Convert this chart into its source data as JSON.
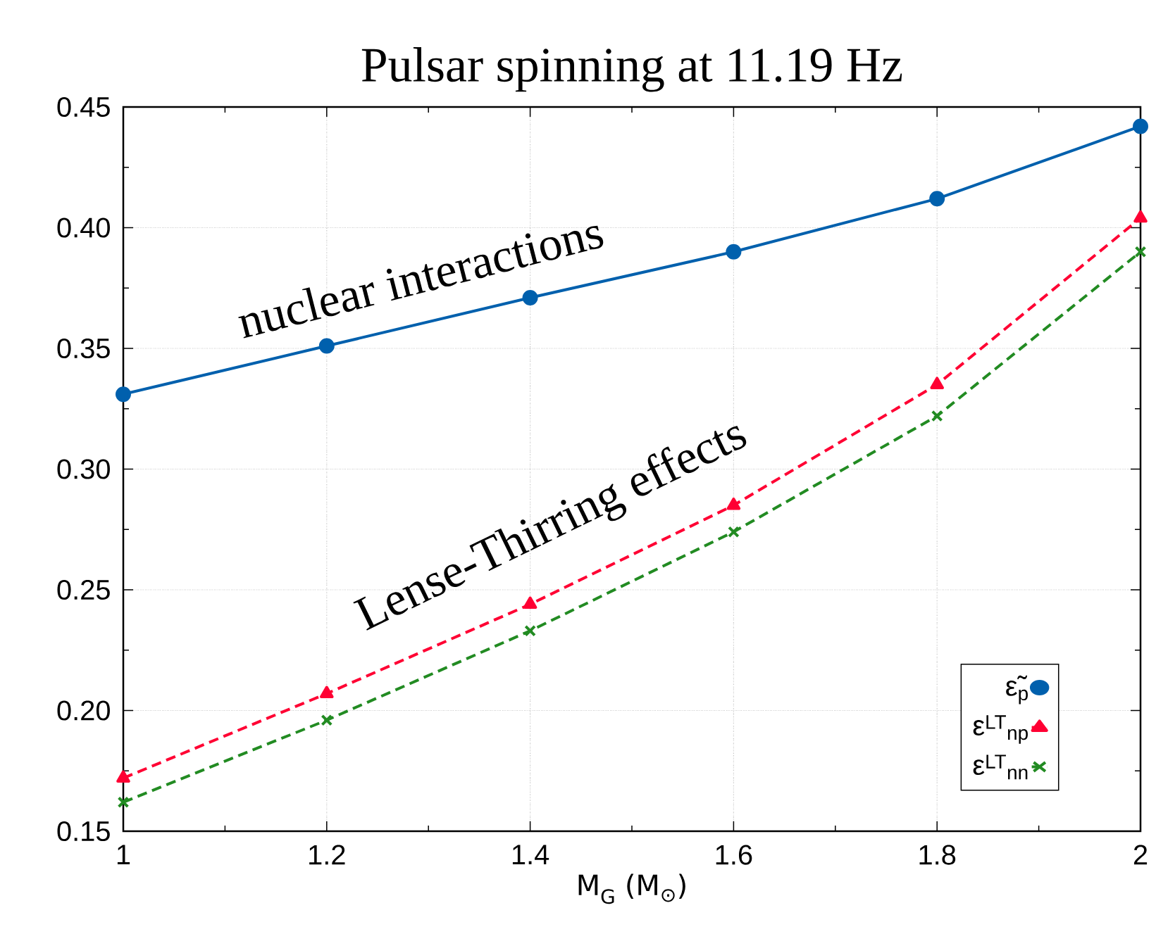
{
  "chart_data": {
    "type": "line",
    "title": "Pulsar spinning at 11.19 Hz",
    "xlabel": "M$_{G}$ (M$_{⊙}$)",
    "x": [
      1,
      1.2,
      1.4,
      1.6,
      1.8,
      2
    ],
    "series": [
      {
        "name": "ε̃$_{p}$",
        "color": "#0060ad",
        "marker": "circle",
        "line_style": "solid",
        "values": [
          0.331,
          0.351,
          0.371,
          0.39,
          0.412,
          0.442
        ]
      },
      {
        "name": "ε$^{LT}$$_{np}$",
        "color": "#ff0033",
        "marker": "triangle",
        "line_style": "dashed",
        "values": [
          0.172,
          0.207,
          0.244,
          0.285,
          0.335,
          0.404
        ]
      },
      {
        "name": "ε$^{LT}$$_{nn}$",
        "color": "#228b22",
        "marker": "cross",
        "line_style": "dashed",
        "values": [
          0.162,
          0.196,
          0.233,
          0.274,
          0.322,
          0.39
        ]
      }
    ],
    "xlim": [
      1,
      2
    ],
    "ylim": [
      0.15,
      0.45
    ],
    "xticks": [
      1,
      1.2,
      1.4,
      1.6,
      1.8,
      2
    ],
    "yticks": [
      {
        "value": 0.15,
        "label": "0.15"
      },
      {
        "value": 0.2,
        "label": "0.20"
      },
      {
        "value": 0.25,
        "label": "0.25"
      },
      {
        "value": 0.3,
        "label": "0.30"
      },
      {
        "value": 0.35,
        "label": "0.35"
      },
      {
        "value": 0.4,
        "label": "0.40"
      },
      {
        "value": 0.45,
        "label": "0.45"
      }
    ],
    "grid": true,
    "legend": "bottom right",
    "annotations": [
      "nuclear interactions",
      "Lense-Thirring effects"
    ]
  }
}
